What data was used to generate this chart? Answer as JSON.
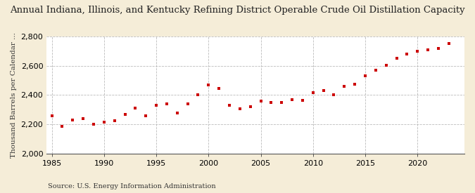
{
  "title": "Annual Indiana, Illinois, and Kentucky Refining District Operable Crude Oil Distillation Capacity",
  "ylabel": "Thousand Barrels per Calendar ...",
  "source": "Source: U.S. Energy Information Administration",
  "background_color": "#f5edd8",
  "plot_background": "#ffffff",
  "marker_color": "#cc0000",
  "years": [
    1985,
    1986,
    1987,
    1988,
    1989,
    1990,
    1991,
    1992,
    1993,
    1994,
    1995,
    1996,
    1997,
    1998,
    1999,
    2000,
    2001,
    2002,
    2003,
    2004,
    2005,
    2006,
    2007,
    2008,
    2009,
    2010,
    2011,
    2012,
    2013,
    2014,
    2015,
    2016,
    2017,
    2018,
    2019,
    2020,
    2021,
    2022,
    2023
  ],
  "values": [
    2260,
    2185,
    2230,
    2240,
    2200,
    2215,
    2225,
    2270,
    2310,
    2260,
    2330,
    2340,
    2280,
    2340,
    2400,
    2470,
    2445,
    2330,
    2305,
    2320,
    2360,
    2350,
    2350,
    2370,
    2365,
    2415,
    2430,
    2400,
    2460,
    2475,
    2530,
    2570,
    2605,
    2650,
    2680,
    2700,
    2710,
    2720,
    2750
  ],
  "ylim": [
    2000,
    2800
  ],
  "xlim": [
    1984.5,
    2024.5
  ],
  "yticks": [
    2000,
    2200,
    2400,
    2600,
    2800
  ],
  "xticks": [
    1985,
    1990,
    1995,
    2000,
    2005,
    2010,
    2015,
    2020
  ],
  "grid_color": "#bbbbbb",
  "title_fontsize": 9.5,
  "label_fontsize": 7.5,
  "tick_fontsize": 8,
  "source_fontsize": 7
}
